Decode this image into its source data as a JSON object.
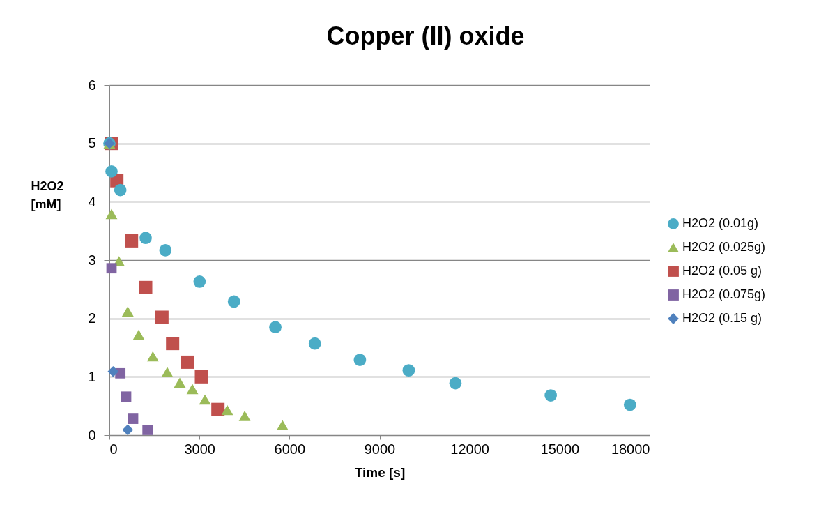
{
  "chart_data": {
    "type": "scatter",
    "title": "Copper (II) oxide",
    "xlabel": "Time [s]",
    "ylabel": "H2O2 [mM]",
    "xlim": [
      0,
      18000
    ],
    "xticks": [
      0,
      3000,
      6000,
      9000,
      12000,
      15000,
      18000
    ],
    "ylim": [
      0,
      6
    ],
    "yticks": [
      0,
      1,
      2,
      3,
      4,
      5,
      6
    ],
    "grid": "y",
    "legend": "right",
    "series": [
      {
        "name": "H2O2 (0.01g)",
        "color": "#4bacc6",
        "marker": "circle",
        "x": [
          0,
          70,
          364,
          1208,
          1866,
          3004,
          4151,
          5529,
          6845,
          8347,
          9973,
          11530,
          14705,
          17346
        ],
        "values": [
          5.0,
          4.52,
          4.2,
          3.38,
          3.17,
          2.63,
          2.29,
          1.85,
          1.57,
          1.29,
          1.11,
          0.89,
          0.68,
          0.52
        ]
      },
      {
        "name": "H2O2 (0.025g)",
        "color": "#9bbb59",
        "marker": "triangle",
        "x": [
          0,
          70,
          318,
          611,
          976,
          1447,
          1928,
          2346,
          2765,
          3183,
          3926,
          4507,
          5768
        ],
        "values": [
          5.0,
          3.79,
          2.98,
          2.12,
          1.72,
          1.35,
          1.08,
          0.9,
          0.79,
          0.61,
          0.43,
          0.33,
          0.17
        ]
      },
      {
        "name": "H2O2  (0.05 g)",
        "color": "#c0504d",
        "marker": "square",
        "x": [
          70,
          248,
          736,
          1208,
          1750,
          2106,
          2594,
          3066,
          3616
        ],
        "values": [
          5.0,
          4.36,
          3.33,
          2.53,
          2.02,
          1.57,
          1.25,
          1.0,
          0.44
        ]
      },
      {
        "name": "H2O2 (0.075g)",
        "color": "#8064a2",
        "marker": "square",
        "x": [
          70,
          364,
          557,
          790,
          1270
        ],
        "values": [
          2.86,
          1.06,
          0.66,
          0.28,
          0.09
        ]
      },
      {
        "name": "H2O2 (0.15 g)",
        "color": "#4f81bd",
        "marker": "diamond",
        "x": [
          0,
          124,
          611
        ],
        "values": [
          5.0,
          1.09,
          0.09
        ]
      }
    ]
  }
}
